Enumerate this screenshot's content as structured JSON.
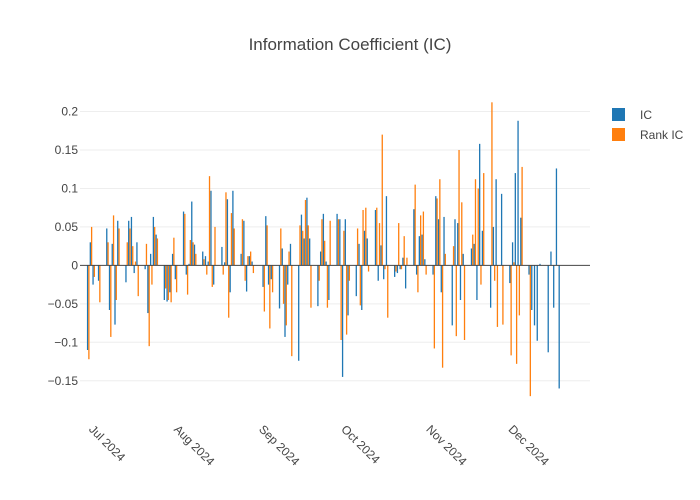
{
  "chart_data": {
    "type": "bar",
    "title": "Information Coefficient (IC)",
    "xlabel": "",
    "ylabel": "",
    "x_range": [
      "2024-06-28",
      "2024-12-31"
    ],
    "ylim": [
      -0.175,
      0.215
    ],
    "y_ticks": [
      -0.15,
      -0.1,
      -0.05,
      0,
      0.05,
      0.1,
      0.15,
      0.2
    ],
    "y_tick_labels": [
      "−0.15",
      "−0.1",
      "−0.05",
      "0",
      "0.05",
      "0.1",
      "0.15",
      "0.2"
    ],
    "x_ticks": [
      "2024-07-01",
      "2024-08-01",
      "2024-09-01",
      "2024-10-01",
      "2024-11-01",
      "2024-12-01"
    ],
    "x_tick_labels": [
      "Jul 2024",
      "Aug 2024",
      "Sep 2024",
      "Oct 2024",
      "Nov 2024",
      "Dec 2024"
    ],
    "grid": true,
    "legend_position": "top-right",
    "series": [
      {
        "name": "IC",
        "color": "#1f77b4",
        "points": [
          [
            "2024-07-01",
            -0.11
          ],
          [
            "2024-07-02",
            0.03
          ],
          [
            "2024-07-03",
            -0.025
          ],
          [
            "2024-07-05",
            -0.02
          ],
          [
            "2024-07-08",
            0.048
          ],
          [
            "2024-07-09",
            -0.058
          ],
          [
            "2024-07-10",
            0.028
          ],
          [
            "2024-07-11",
            -0.077
          ],
          [
            "2024-07-12",
            0.058
          ],
          [
            "2024-07-15",
            -0.022
          ],
          [
            "2024-07-16",
            0.058
          ],
          [
            "2024-07-17",
            0.063
          ],
          [
            "2024-07-18",
            -0.01
          ],
          [
            "2024-07-19",
            0.03
          ],
          [
            "2024-07-22",
            -0.005
          ],
          [
            "2024-07-23",
            -0.062
          ],
          [
            "2024-07-24",
            0.015
          ],
          [
            "2024-07-25",
            0.063
          ],
          [
            "2024-07-26",
            0.04
          ],
          [
            "2024-07-29",
            -0.045
          ],
          [
            "2024-07-30",
            -0.047
          ],
          [
            "2024-07-31",
            -0.035
          ],
          [
            "2024-08-01",
            0.015
          ],
          [
            "2024-08-02",
            -0.018
          ],
          [
            "2024-08-05",
            0.07
          ],
          [
            "2024-08-06",
            -0.012
          ],
          [
            "2024-08-07",
            0.002
          ],
          [
            "2024-08-08",
            0.083
          ],
          [
            "2024-08-09",
            0.027
          ],
          [
            "2024-08-12",
            0.018
          ],
          [
            "2024-08-13",
            0.012
          ],
          [
            "2024-08-14",
            0.005
          ],
          [
            "2024-08-15",
            0.097
          ],
          [
            "2024-08-16",
            -0.025
          ],
          [
            "2024-08-19",
            0.024
          ],
          [
            "2024-08-20",
            0.004
          ],
          [
            "2024-08-21",
            0.086
          ],
          [
            "2024-08-22",
            -0.035
          ],
          [
            "2024-08-23",
            0.097
          ],
          [
            "2024-08-26",
            0.015
          ],
          [
            "2024-08-27",
            0.058
          ],
          [
            "2024-08-28",
            -0.034
          ],
          [
            "2024-08-29",
            0.012
          ],
          [
            "2024-08-30",
            0.005
          ],
          [
            "2024-09-03",
            -0.028
          ],
          [
            "2024-09-04",
            0.064
          ],
          [
            "2024-09-05",
            -0.025
          ],
          [
            "2024-09-06",
            -0.018
          ],
          [
            "2024-09-09",
            -0.056
          ],
          [
            "2024-09-10",
            0.022
          ],
          [
            "2024-09-11",
            -0.093
          ],
          [
            "2024-09-12",
            -0.025
          ],
          [
            "2024-09-13",
            0.028
          ],
          [
            "2024-09-16",
            -0.124
          ],
          [
            "2024-09-17",
            0.066
          ],
          [
            "2024-09-18",
            0.035
          ],
          [
            "2024-09-19",
            0.088
          ],
          [
            "2024-09-20",
            0.035
          ],
          [
            "2024-09-23",
            -0.053
          ],
          [
            "2024-09-24",
            0.018
          ],
          [
            "2024-09-25",
            0.067
          ],
          [
            "2024-09-26",
            0.005
          ],
          [
            "2024-09-27",
            -0.045
          ],
          [
            "2024-09-30",
            0.067
          ],
          [
            "2024-10-01",
            0.06
          ],
          [
            "2024-10-02",
            -0.145
          ],
          [
            "2024-10-03",
            0.06
          ],
          [
            "2024-10-04",
            -0.065
          ],
          [
            "2024-10-07",
            -0.04
          ],
          [
            "2024-10-08",
            0.028
          ],
          [
            "2024-10-09",
            -0.058
          ],
          [
            "2024-10-10",
            0.045
          ],
          [
            "2024-10-11",
            0.035
          ],
          [
            "2024-10-14",
            0.072
          ],
          [
            "2024-10-15",
            -0.02
          ],
          [
            "2024-10-16",
            0.026
          ],
          [
            "2024-10-17",
            -0.018
          ],
          [
            "2024-10-18",
            0.09
          ],
          [
            "2024-10-21",
            -0.015
          ],
          [
            "2024-10-22",
            -0.01
          ],
          [
            "2024-10-23",
            -0.005
          ],
          [
            "2024-10-24",
            0.01
          ],
          [
            "2024-10-25",
            -0.03
          ],
          [
            "2024-10-28",
            0.073
          ],
          [
            "2024-10-29",
            -0.012
          ],
          [
            "2024-10-30",
            0.038
          ],
          [
            "2024-10-31",
            0.04
          ],
          [
            "2024-11-01",
            0.008
          ],
          [
            "2024-11-04",
            -0.012
          ],
          [
            "2024-11-05",
            0.09
          ],
          [
            "2024-11-06",
            0.06
          ],
          [
            "2024-11-07",
            -0.035
          ],
          [
            "2024-11-08",
            0.063
          ],
          [
            "2024-11-11",
            -0.078
          ],
          [
            "2024-11-12",
            0.06
          ],
          [
            "2024-11-13",
            0.055
          ],
          [
            "2024-11-14",
            -0.045
          ],
          [
            "2024-11-15",
            0.015
          ],
          [
            "2024-11-18",
            0.022
          ],
          [
            "2024-11-19",
            0.028
          ],
          [
            "2024-11-20",
            -0.045
          ],
          [
            "2024-11-21",
            0.158
          ],
          [
            "2024-11-22",
            0.045
          ],
          [
            "2024-11-25",
            -0.055
          ],
          [
            "2024-11-26",
            0.05
          ],
          [
            "2024-11-27",
            0.112
          ],
          [
            "2024-11-29",
            0.093
          ],
          [
            "2024-12-02",
            -0.023
          ],
          [
            "2024-12-03",
            0.03
          ],
          [
            "2024-12-04",
            0.12
          ],
          [
            "2024-12-05",
            0.188
          ],
          [
            "2024-12-06",
            0.062
          ],
          [
            "2024-12-09",
            -0.012
          ],
          [
            "2024-12-10",
            -0.058
          ],
          [
            "2024-12-11",
            -0.078
          ],
          [
            "2024-12-12",
            -0.098
          ],
          [
            "2024-12-13",
            0.002
          ],
          [
            "2024-12-16",
            -0.113
          ],
          [
            "2024-12-17",
            0.018
          ],
          [
            "2024-12-18",
            -0.055
          ],
          [
            "2024-12-19",
            0.126
          ],
          [
            "2024-12-20",
            -0.16
          ]
        ]
      },
      {
        "name": "Rank IC",
        "color": "#ff7f0e",
        "points": [
          [
            "2024-07-01",
            -0.122
          ],
          [
            "2024-07-02",
            0.05
          ],
          [
            "2024-07-03",
            -0.015
          ],
          [
            "2024-07-05",
            -0.048
          ],
          [
            "2024-07-08",
            0.03
          ],
          [
            "2024-07-09",
            -0.093
          ],
          [
            "2024-07-10",
            0.065
          ],
          [
            "2024-07-11",
            -0.045
          ],
          [
            "2024-07-12",
            0.048
          ],
          [
            "2024-07-15",
            0.03
          ],
          [
            "2024-07-16",
            0.048
          ],
          [
            "2024-07-17",
            0.025
          ],
          [
            "2024-07-18",
            0.005
          ],
          [
            "2024-07-19",
            -0.04
          ],
          [
            "2024-07-22",
            0.028
          ],
          [
            "2024-07-23",
            -0.105
          ],
          [
            "2024-07-24",
            -0.025
          ],
          [
            "2024-07-25",
            0.05
          ],
          [
            "2024-07-26",
            0.035
          ],
          [
            "2024-07-29",
            -0.03
          ],
          [
            "2024-07-30",
            -0.045
          ],
          [
            "2024-07-31",
            -0.048
          ],
          [
            "2024-08-01",
            0.036
          ],
          [
            "2024-08-02",
            -0.035
          ],
          [
            "2024-08-05",
            0.067
          ],
          [
            "2024-08-06",
            -0.038
          ],
          [
            "2024-08-07",
            0.033
          ],
          [
            "2024-08-08",
            0.03
          ],
          [
            "2024-08-09",
            0.015
          ],
          [
            "2024-08-12",
            0.008
          ],
          [
            "2024-08-13",
            -0.012
          ],
          [
            "2024-08-14",
            0.116
          ],
          [
            "2024-08-15",
            -0.028
          ],
          [
            "2024-08-16",
            0.05
          ],
          [
            "2024-08-19",
            -0.012
          ],
          [
            "2024-08-20",
            0.095
          ],
          [
            "2024-08-21",
            -0.068
          ],
          [
            "2024-08-22",
            0.068
          ],
          [
            "2024-08-23",
            0.048
          ],
          [
            "2024-08-26",
            0.06
          ],
          [
            "2024-08-27",
            -0.02
          ],
          [
            "2024-08-28",
            0.012
          ],
          [
            "2024-08-29",
            0.018
          ],
          [
            "2024-08-30",
            -0.01
          ],
          [
            "2024-09-03",
            -0.06
          ],
          [
            "2024-09-04",
            0.052
          ],
          [
            "2024-09-05",
            -0.082
          ],
          [
            "2024-09-06",
            -0.035
          ],
          [
            "2024-09-09",
            0.048
          ],
          [
            "2024-09-10",
            -0.05
          ],
          [
            "2024-09-11",
            -0.078
          ],
          [
            "2024-09-12",
            0.018
          ],
          [
            "2024-09-13",
            -0.118
          ],
          [
            "2024-09-16",
            0.052
          ],
          [
            "2024-09-17",
            0.045
          ],
          [
            "2024-09-18",
            0.085
          ],
          [
            "2024-09-19",
            0.052
          ],
          [
            "2024-09-20",
            -0.055
          ],
          [
            "2024-09-23",
            -0.02
          ],
          [
            "2024-09-24",
            0.06
          ],
          [
            "2024-09-25",
            0.032
          ],
          [
            "2024-09-26",
            -0.055
          ],
          [
            "2024-09-27",
            0.058
          ],
          [
            "2024-09-30",
            0.06
          ],
          [
            "2024-10-01",
            -0.097
          ],
          [
            "2024-10-02",
            0.045
          ],
          [
            "2024-10-03",
            -0.09
          ],
          [
            "2024-10-04",
            -0.02
          ],
          [
            "2024-10-07",
            0.048
          ],
          [
            "2024-10-08",
            -0.052
          ],
          [
            "2024-10-09",
            0.072
          ],
          [
            "2024-10-10",
            0.075
          ],
          [
            "2024-10-11",
            -0.008
          ],
          [
            "2024-10-14",
            0.075
          ],
          [
            "2024-10-15",
            0.055
          ],
          [
            "2024-10-16",
            0.17
          ],
          [
            "2024-10-17",
            -0.005
          ],
          [
            "2024-10-18",
            -0.068
          ],
          [
            "2024-10-21",
            -0.008
          ],
          [
            "2024-10-22",
            0.055
          ],
          [
            "2024-10-23",
            -0.005
          ],
          [
            "2024-10-24",
            0.038
          ],
          [
            "2024-10-25",
            0.01
          ],
          [
            "2024-10-28",
            0.105
          ],
          [
            "2024-10-29",
            -0.035
          ],
          [
            "2024-10-30",
            0.065
          ],
          [
            "2024-10-31",
            0.07
          ],
          [
            "2024-11-01",
            -0.012
          ],
          [
            "2024-11-04",
            -0.108
          ],
          [
            "2024-11-05",
            0.087
          ],
          [
            "2024-11-06",
            0.112
          ],
          [
            "2024-11-07",
            -0.133
          ],
          [
            "2024-11-08",
            0.015
          ],
          [
            "2024-11-11",
            0.025
          ],
          [
            "2024-11-12",
            -0.092
          ],
          [
            "2024-11-13",
            0.15
          ],
          [
            "2024-11-14",
            0.082
          ],
          [
            "2024-11-15",
            -0.097
          ],
          [
            "2024-11-18",
            0.04
          ],
          [
            "2024-11-19",
            0.112
          ],
          [
            "2024-11-20",
            0.1
          ],
          [
            "2024-11-21",
            -0.025
          ],
          [
            "2024-11-22",
            0.12
          ],
          [
            "2024-11-25",
            0.212
          ],
          [
            "2024-11-26",
            -0.02
          ],
          [
            "2024-11-27",
            -0.08
          ],
          [
            "2024-11-29",
            -0.077
          ],
          [
            "2024-12-02",
            -0.117
          ],
          [
            "2024-12-03",
            0.004
          ],
          [
            "2024-12-04",
            -0.128
          ],
          [
            "2024-12-05",
            -0.065
          ],
          [
            "2024-12-06",
            0.128
          ],
          [
            "2024-12-09",
            -0.17
          ]
        ]
      }
    ]
  }
}
